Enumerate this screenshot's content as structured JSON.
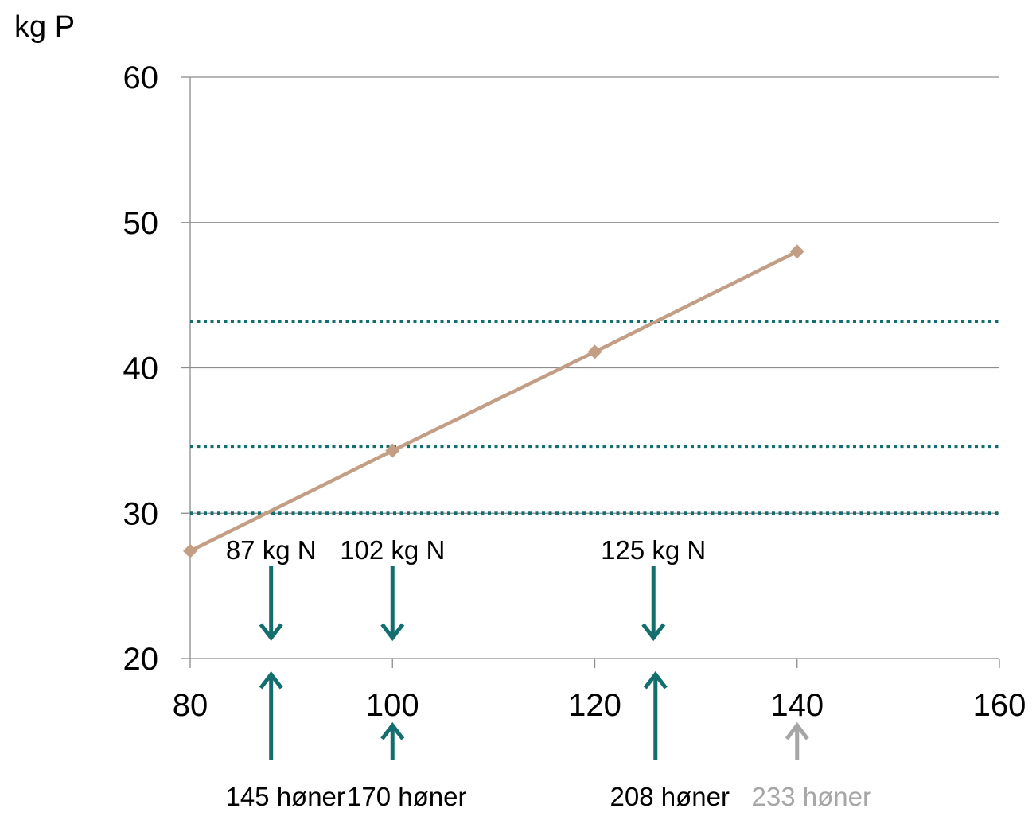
{
  "chart_data": {
    "type": "line",
    "ylabel": "kg P",
    "xlim": [
      80,
      160
    ],
    "ylim": [
      20,
      60
    ],
    "x_ticks": [
      80,
      100,
      120,
      140,
      160
    ],
    "y_ticks": [
      20,
      30,
      40,
      50,
      60
    ],
    "x_tick_labels": [
      "80",
      "100",
      "120",
      "140",
      "160"
    ],
    "y_tick_labels": [
      "20",
      "30",
      "40",
      "50",
      "60"
    ],
    "grid": "horizontal",
    "series": [
      {
        "x": [
          80,
          100,
          120,
          140
        ],
        "y": [
          27.4,
          34.3,
          41.1,
          48.0
        ],
        "color": "#C39E84",
        "marker": "diamond"
      }
    ],
    "reference_lines": [
      {
        "y": 43.2,
        "color": "#136E70",
        "style": "dotted"
      },
      {
        "y": 34.6,
        "color": "#136E70",
        "style": "dotted"
      },
      {
        "y": 30.0,
        "color": "#136E70",
        "style": "dotted"
      }
    ],
    "annotations_top": [
      {
        "x": 88,
        "label": "87 kg N",
        "color": "#136E70",
        "direction": "down"
      },
      {
        "x": 100,
        "label": "102  kg N",
        "color": "#136E70",
        "direction": "down"
      },
      {
        "x": 125.8,
        "label": "125  kg N",
        "color": "#136E70",
        "direction": "down"
      }
    ],
    "annotations_bottom": [
      {
        "x": 88,
        "label": "145 høner",
        "color": "#136E70",
        "label_color": "#000000",
        "direction": "up",
        "size": "long"
      },
      {
        "x": 100,
        "label": "170 høner",
        "color": "#136E70",
        "label_color": "#000000",
        "direction": "up",
        "size": "short"
      },
      {
        "x": 126,
        "label": "208 høner",
        "color": "#136E70",
        "label_color": "#000000",
        "direction": "up",
        "size": "long"
      },
      {
        "x": 140,
        "label": "233 høner",
        "color": "#A6A6A6",
        "label_color": "#A6A6A6",
        "direction": "up",
        "size": "short"
      }
    ]
  }
}
